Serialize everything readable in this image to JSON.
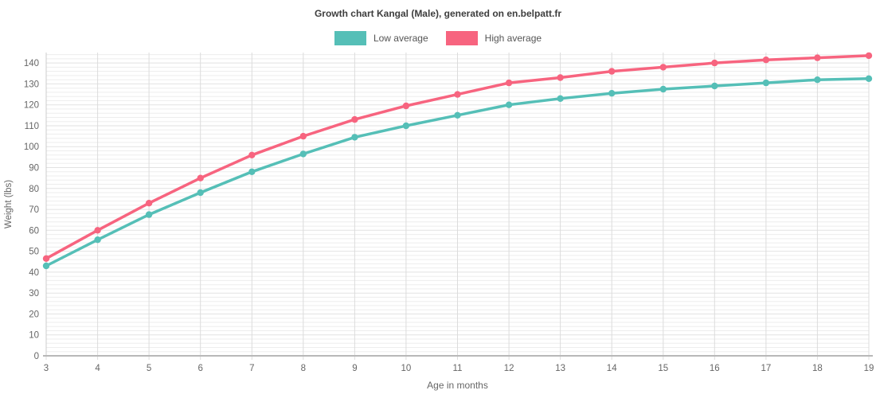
{
  "page": {
    "title": "Growth chart Kangal (Male), generated on en.belpatt.fr"
  },
  "chart_data": {
    "type": "line",
    "title": "Growth chart Kangal (Male), generated on en.belpatt.fr",
    "xlabel": "Age in months",
    "ylabel": "Weight (lbs)",
    "x": [
      3,
      4,
      5,
      6,
      7,
      8,
      9,
      10,
      11,
      12,
      13,
      14,
      15,
      16,
      17,
      18,
      19
    ],
    "xlim": [
      3,
      19
    ],
    "ylim": [
      0,
      145
    ],
    "yticks": [
      0,
      10,
      20,
      30,
      40,
      50,
      60,
      70,
      80,
      90,
      100,
      110,
      120,
      130,
      140
    ],
    "grid": true,
    "legend_position": "top",
    "series": [
      {
        "name": "Low average",
        "color": "#55bfb7",
        "values": [
          43,
          55.5,
          67.5,
          78,
          88,
          96.5,
          104.5,
          110,
          115,
          120,
          123,
          125.5,
          127.5,
          129,
          130.5,
          132,
          132.5
        ]
      },
      {
        "name": "High average",
        "color": "#f7647f",
        "values": [
          46.5,
          60,
          73,
          85,
          96,
          105,
          113,
          119.5,
          125,
          130.5,
          133,
          136,
          138,
          140,
          141.5,
          142.5,
          143.5
        ]
      }
    ],
    "style": {
      "tick_label_color": "#666666",
      "axis_title_color": "#666666",
      "x_axis_line_color": "#b8b8b8",
      "y_axis_line_color": "#cccccc",
      "v_grid_color": "#dcdcdc",
      "h_minor_grid_color": "#ededed",
      "h_major_grid_color": "#e2e2e2"
    }
  }
}
